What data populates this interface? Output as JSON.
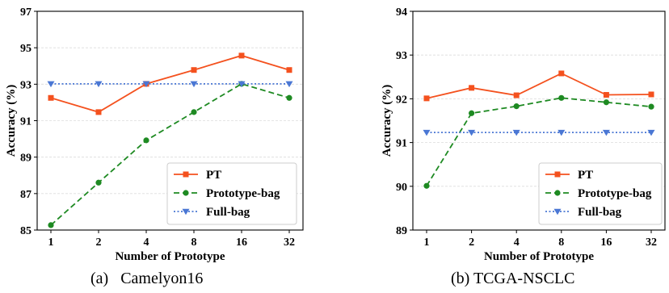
{
  "colors": {
    "pt": "#f4511e",
    "prototype_bag": "#1e8a22",
    "full_bag": "#4a77d4",
    "grid": "#dcdcdc",
    "axis": "#000000"
  },
  "chart_data": [
    {
      "type": "line",
      "caption": "(a)   Camelyon16",
      "xlabel": "Number of Prototype",
      "ylabel": "Accuracy (%)",
      "categories": [
        "1",
        "2",
        "4",
        "8",
        "16",
        "32"
      ],
      "ylim": [
        85,
        97
      ],
      "yticks": [
        "85",
        "87",
        "89",
        "91",
        "93",
        "95",
        "97"
      ],
      "grid": true,
      "legend_position": "lower-right",
      "series": [
        {
          "name": "PT",
          "marker": "square",
          "line": "solid",
          "color": "#f4511e",
          "values": [
            92.25,
            91.47,
            93.02,
            93.78,
            94.57,
            93.78
          ]
        },
        {
          "name": "Prototype-bag",
          "marker": "circle",
          "line": "dashed",
          "color": "#1e8a22",
          "values": [
            85.27,
            87.6,
            89.92,
            91.47,
            93.02,
            92.25
          ]
        },
        {
          "name": "Full-bag",
          "marker": "triangle-down",
          "line": "dotted",
          "color": "#4a77d4",
          "values": [
            93.02,
            93.02,
            93.02,
            93.02,
            93.02,
            93.02
          ]
        }
      ]
    },
    {
      "type": "line",
      "caption": "(b) TCGA-NSCLC",
      "xlabel": "Number of Prototype",
      "ylabel": "Accuracy (%)",
      "categories": [
        "1",
        "2",
        "4",
        "8",
        "16",
        "32"
      ],
      "ylim": [
        89,
        94
      ],
      "yticks": [
        "89",
        "90",
        "91",
        "92",
        "93",
        "94"
      ],
      "grid": true,
      "legend_position": "lower-right",
      "series": [
        {
          "name": "PT",
          "marker": "square",
          "line": "solid",
          "color": "#f4511e",
          "values": [
            92.01,
            92.25,
            92.08,
            92.58,
            92.09,
            92.1
          ]
        },
        {
          "name": "Prototype-bag",
          "marker": "circle",
          "line": "dashed",
          "color": "#1e8a22",
          "values": [
            90.01,
            91.67,
            91.83,
            92.02,
            91.92,
            91.82
          ]
        },
        {
          "name": "Full-bag",
          "marker": "triangle-down",
          "line": "dotted",
          "color": "#4a77d4",
          "values": [
            91.23,
            91.23,
            91.23,
            91.23,
            91.23,
            91.23
          ]
        }
      ]
    }
  ]
}
